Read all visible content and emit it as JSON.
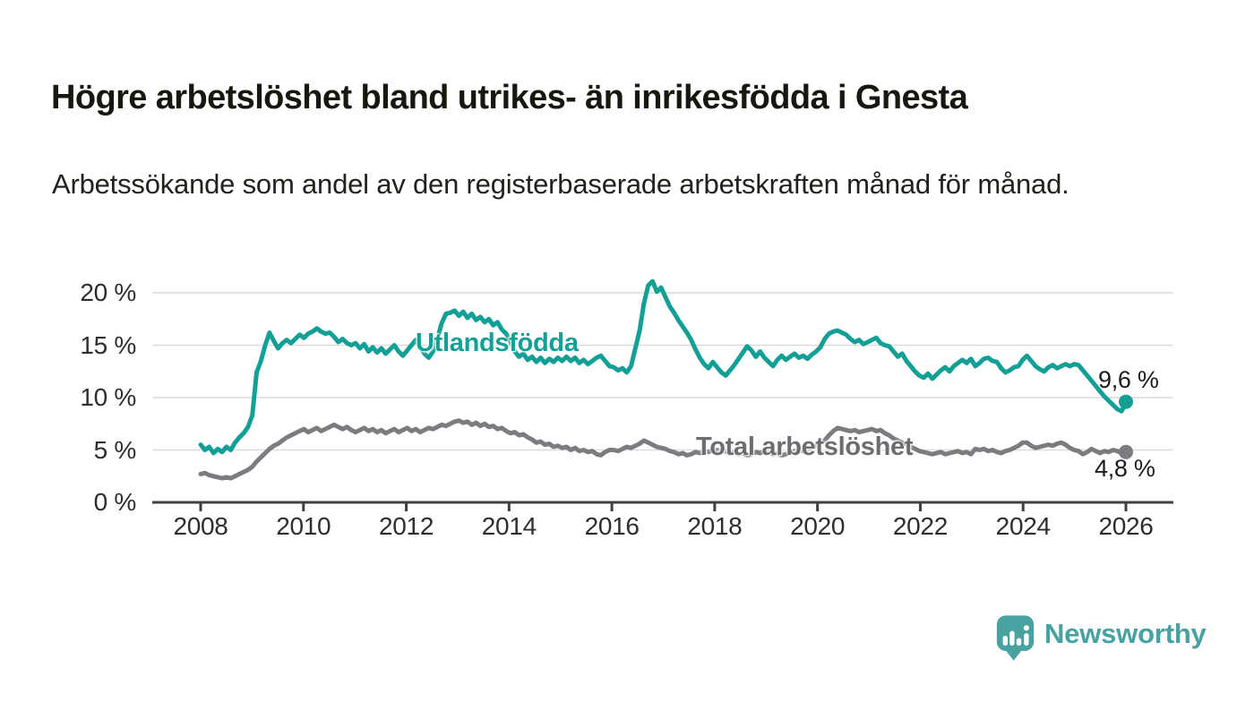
{
  "header": {
    "title": "Högre arbetslöshet bland utrikes- än inrikesfödda i Gnesta",
    "subtitle": "Arbetssökande som andel av den registerbaserade arbetskraften månad för månad."
  },
  "chart_data": {
    "type": "line",
    "title": "Högre arbetslöshet bland utrikes- än inrikesfödda i Gnesta",
    "subtitle": "Arbetssökande som andel av den registerbaserade arbetskraften månad för månad.",
    "frequency": "monthly",
    "x_start": "2008-01",
    "x_end": "2025-12",
    "x_ticks": [
      2008,
      2010,
      2012,
      2014,
      2016,
      2018,
      2020,
      2022,
      2024,
      2026
    ],
    "y_ticks": [
      {
        "value": 0,
        "label": "0 %"
      },
      {
        "value": 5,
        "label": "5 %"
      },
      {
        "value": 10,
        "label": "10 %"
      },
      {
        "value": 15,
        "label": "15 %"
      },
      {
        "value": 20,
        "label": "20 %"
      }
    ],
    "ylim": [
      0,
      21.5
    ],
    "grid": true,
    "legend_position": "inline-on-line",
    "colors": {
      "axis": "#3f3f3f",
      "gridline": "#dcdcdc",
      "tick_text": "#2e2e2e"
    },
    "series": [
      {
        "name": "Utlandsfödda",
        "color": "#12a096",
        "label_color": "#12a096",
        "end_label": "9,6 %",
        "end_value": 9.6,
        "values": [
          5.5,
          5.0,
          5.3,
          4.7,
          5.1,
          4.8,
          5.3,
          5.0,
          5.7,
          6.2,
          6.6,
          7.2,
          8.3,
          12.4,
          13.5,
          15.0,
          16.2,
          15.4,
          14.7,
          15.2,
          15.5,
          15.2,
          15.6,
          16.0,
          15.7,
          16.1,
          16.3,
          16.6,
          16.3,
          16.1,
          16.2,
          15.8,
          15.3,
          15.6,
          15.2,
          15.0,
          15.2,
          14.7,
          15.1,
          14.4,
          14.8,
          14.3,
          14.7,
          14.2,
          14.6,
          15.0,
          14.4,
          14.0,
          14.5,
          15.0,
          15.5,
          14.9,
          14.2,
          13.8,
          14.4,
          15.6,
          17.1,
          18.0,
          18.1,
          18.3,
          17.8,
          18.2,
          17.6,
          18.0,
          17.4,
          17.7,
          17.2,
          17.5,
          16.9,
          17.2,
          16.5,
          16.1,
          15.3,
          14.4,
          13.9,
          14.2,
          13.6,
          13.9,
          13.4,
          13.8,
          13.3,
          13.7,
          13.4,
          13.8,
          13.5,
          13.9,
          13.5,
          13.8,
          13.3,
          13.6,
          13.2,
          13.5,
          13.8,
          14.0,
          13.5,
          13.0,
          12.9,
          12.6,
          12.8,
          12.4,
          13.0,
          14.7,
          16.4,
          19.0,
          20.7,
          21.1,
          20.1,
          20.5,
          19.6,
          18.7,
          18.1,
          17.4,
          16.8,
          16.2,
          15.5,
          14.6,
          13.8,
          13.2,
          12.8,
          13.4,
          12.9,
          12.4,
          12.1,
          12.6,
          13.1,
          13.7,
          14.3,
          14.9,
          14.5,
          13.9,
          14.4,
          13.8,
          13.4,
          13.0,
          13.6,
          14.0,
          13.6,
          13.9,
          14.2,
          13.8,
          14.0,
          13.7,
          14.1,
          14.4,
          14.8,
          15.6,
          16.1,
          16.3,
          16.4,
          16.2,
          16.0,
          15.6,
          15.3,
          15.5,
          15.1,
          15.3,
          15.5,
          15.7,
          15.2,
          15.0,
          14.9,
          14.4,
          13.9,
          14.2,
          13.5,
          13.0,
          12.5,
          12.1,
          11.9,
          12.3,
          11.8,
          12.2,
          12.6,
          12.9,
          12.5,
          13.0,
          13.3,
          13.6,
          13.3,
          13.7,
          13.0,
          13.3,
          13.7,
          13.8,
          13.5,
          13.4,
          12.8,
          12.4,
          12.6,
          12.9,
          13.0,
          13.6,
          14.0,
          13.5,
          13.0,
          12.7,
          12.5,
          12.9,
          13.1,
          12.8,
          13.0,
          13.2,
          13.0,
          13.2,
          13.1,
          12.6,
          12.1,
          11.6,
          11.1,
          10.6,
          10.1,
          9.7,
          9.3,
          8.9,
          8.7,
          9.6
        ]
      },
      {
        "name": "Total arbetslöshet",
        "color": "#7c7c80",
        "label_color": "#6d6d71",
        "end_label": "4,8 %",
        "end_value": 4.8,
        "values": [
          2.7,
          2.8,
          2.6,
          2.5,
          2.4,
          2.3,
          2.4,
          2.3,
          2.5,
          2.7,
          2.9,
          3.1,
          3.4,
          3.9,
          4.3,
          4.7,
          5.1,
          5.4,
          5.6,
          5.9,
          6.2,
          6.4,
          6.6,
          6.8,
          7.0,
          6.7,
          6.9,
          7.1,
          6.8,
          7.0,
          7.2,
          7.4,
          7.2,
          7.0,
          7.2,
          6.9,
          6.7,
          6.9,
          7.1,
          6.8,
          7.0,
          6.7,
          6.9,
          6.6,
          6.8,
          7.0,
          6.7,
          6.9,
          7.1,
          6.8,
          7.0,
          6.7,
          6.9,
          7.1,
          7.0,
          7.2,
          7.4,
          7.3,
          7.5,
          7.7,
          7.8,
          7.6,
          7.7,
          7.4,
          7.6,
          7.3,
          7.5,
          7.2,
          7.3,
          7.0,
          7.1,
          6.8,
          6.6,
          6.7,
          6.4,
          6.5,
          6.2,
          6.0,
          5.7,
          5.8,
          5.5,
          5.6,
          5.3,
          5.4,
          5.2,
          5.3,
          5.0,
          5.2,
          4.9,
          5.0,
          4.8,
          4.9,
          4.6,
          4.5,
          4.8,
          5.0,
          5.0,
          4.9,
          5.1,
          5.3,
          5.2,
          5.4,
          5.6,
          5.9,
          5.7,
          5.5,
          5.3,
          5.2,
          5.1,
          4.9,
          4.8,
          4.6,
          4.7,
          4.5,
          4.6,
          4.8,
          4.7,
          4.9,
          4.8,
          5.0,
          5.0,
          4.8,
          4.9,
          4.7,
          4.8,
          4.6,
          4.7,
          4.5,
          4.6,
          4.8,
          4.7,
          4.9,
          4.8,
          4.6,
          4.7,
          4.5,
          4.6,
          4.8,
          4.9,
          5.0,
          4.9,
          5.1,
          5.2,
          5.4,
          5.6,
          5.9,
          6.4,
          6.8,
          7.1,
          7.0,
          6.9,
          6.8,
          6.9,
          6.7,
          6.8,
          6.9,
          7.0,
          6.8,
          6.9,
          6.6,
          6.4,
          6.1,
          5.9,
          5.7,
          5.5,
          5.3,
          5.1,
          4.9,
          4.8,
          4.7,
          4.6,
          4.7,
          4.8,
          4.6,
          4.7,
          4.8,
          4.9,
          4.7,
          4.8,
          4.6,
          5.1,
          5.0,
          5.1,
          4.9,
          5.0,
          4.8,
          4.7,
          4.9,
          5.0,
          5.2,
          5.4,
          5.7,
          5.7,
          5.4,
          5.2,
          5.3,
          5.4,
          5.5,
          5.4,
          5.6,
          5.7,
          5.5,
          5.2,
          5.0,
          4.9,
          4.6,
          4.8,
          5.1,
          4.9,
          4.7,
          4.9,
          4.8,
          5.0,
          4.9,
          4.7,
          4.8
        ]
      }
    ]
  },
  "branding": {
    "logo_text": "Newsworthy",
    "logo_color": "#47a2a0",
    "logo_icon": "bar-chart-speech-bubble-icon"
  }
}
